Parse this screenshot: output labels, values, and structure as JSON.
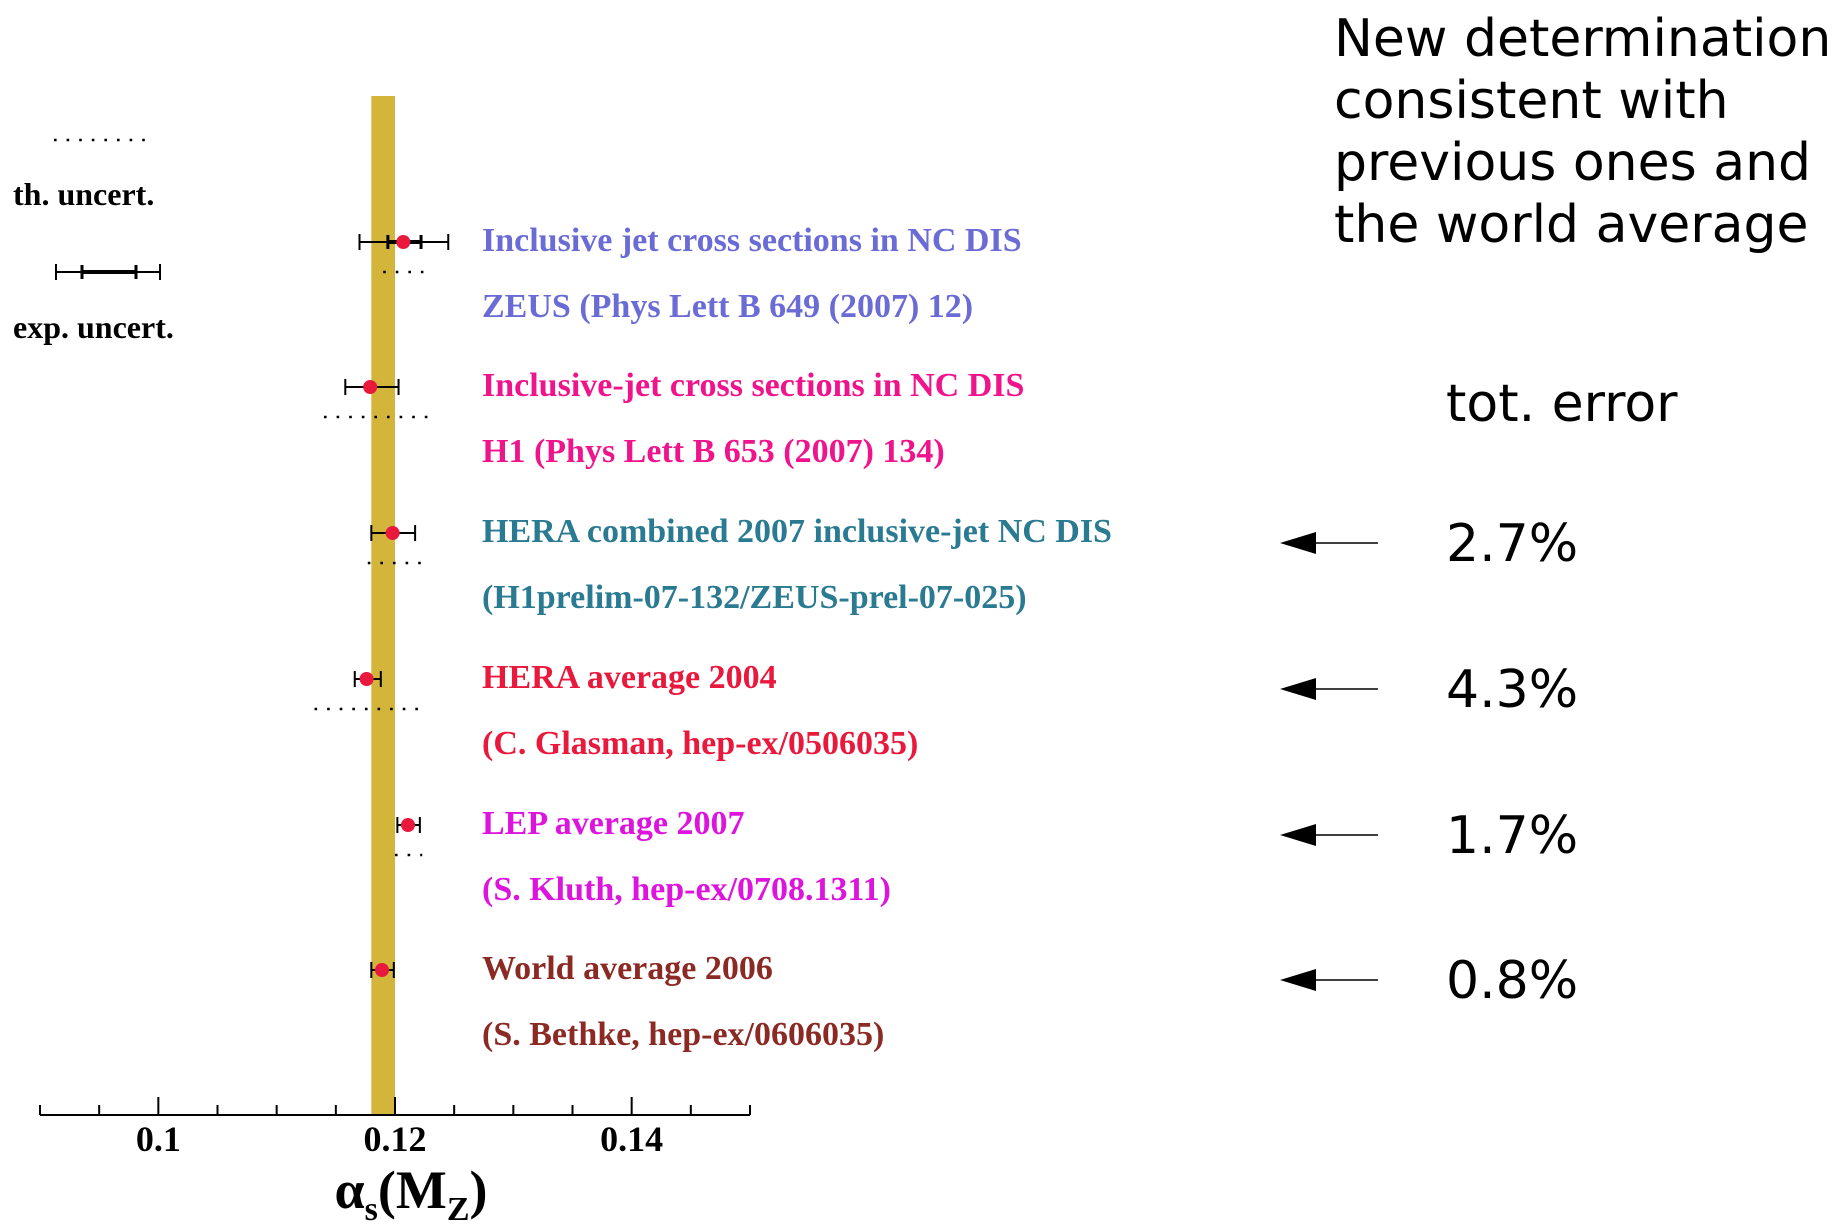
{
  "note_lines": [
    "New determination",
    "consistent with",
    "previous ones and",
    "the world average"
  ],
  "tot_error_header": "tot. error",
  "legend": {
    "th_label": "th. uncert.",
    "exp_label": "exp. uncert."
  },
  "colors": {
    "band": "#d4b53c",
    "point": "#e8193c",
    "axis": "#000000"
  },
  "chart_data": {
    "type": "scatter",
    "title": "",
    "xlabel": "αs(MZ)",
    "ylabel": "",
    "xlim": [
      0.09,
      0.15
    ],
    "xticks": [
      0.1,
      0.12,
      0.14
    ],
    "xtick_labels": [
      "0.1",
      "0.12",
      "0.14"
    ],
    "minor_tick_step": 0.005,
    "band": [
      0.118,
      0.12
    ],
    "grid": false,
    "measurements": [
      {
        "label": "Inclusive jet cross sections in NC DIS",
        "ref": "ZEUS (Phys Lett B 649 (2007) 12)",
        "color": "#6b6bd6",
        "value": 0.1207,
        "exp_low": 0.1194,
        "exp_high": 0.1222,
        "tot_low": 0.117,
        "tot_high": 0.1245,
        "th_low": 0.119,
        "th_high": 0.1224,
        "tot_error": ""
      },
      {
        "label": "Inclusive-jet cross sections in NC DIS",
        "ref": "H1 (Phys Lett B 653 (2007) 134)",
        "color": "#f0148c",
        "value": 0.1179,
        "exp_low": 0.1158,
        "exp_high": 0.1203,
        "tot_low": 0.1158,
        "tot_high": 0.1203,
        "th_low": 0.114,
        "th_high": 0.1231,
        "tot_error": ""
      },
      {
        "label": "HERA combined 2007 inclusive-jet NC DIS",
        "ref": "(H1prelim-07-132/ZEUS-prel-07-025)",
        "color": "#2a7a92",
        "value": 0.1198,
        "exp_low": 0.118,
        "exp_high": 0.1217,
        "tot_low": 0.118,
        "tot_high": 0.1217,
        "th_low": 0.1177,
        "th_high": 0.1223,
        "tot_error": "2.7%"
      },
      {
        "label": "HERA average 2004",
        "ref": "(C. Glasman, hep-ex/0506035)",
        "color": "#e8193c",
        "value": 0.1176,
        "exp_low": 0.1166,
        "exp_high": 0.1188,
        "tot_low": 0.1166,
        "tot_high": 0.1188,
        "th_low": 0.1132,
        "th_high": 0.1223,
        "tot_error": "4.3%"
      },
      {
        "label": "LEP average 2007",
        "ref": "(S. Kluth, hep-ex/0708.1311)",
        "color": "#dd14dd",
        "value": 0.1211,
        "exp_low": 0.1202,
        "exp_high": 0.1221,
        "tot_low": 0.1202,
        "tot_high": 0.1221,
        "th_low": 0.12,
        "th_high": 0.1223,
        "tot_error": "1.7%"
      },
      {
        "label": "World average 2006",
        "ref": "(S. Bethke, hep-ex/0606035)",
        "color": "#8b2a24",
        "value": 0.1189,
        "exp_low": 0.118,
        "exp_high": 0.1199,
        "tot_low": 0.118,
        "tot_high": 0.1199,
        "th_low": null,
        "th_high": null,
        "tot_error": "0.8%"
      }
    ]
  }
}
